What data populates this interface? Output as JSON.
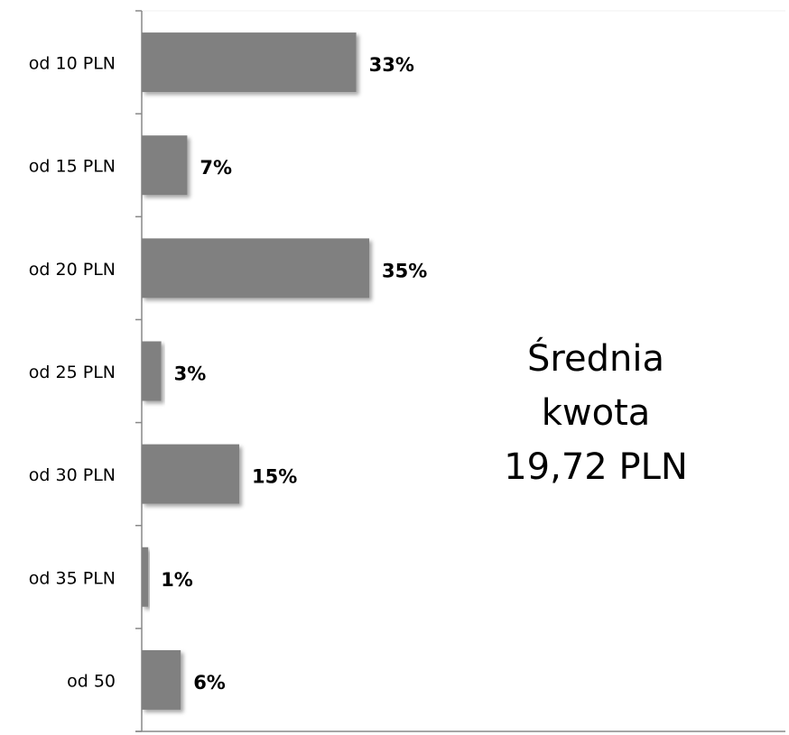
{
  "chart_data": {
    "type": "barh",
    "categories": [
      "od 10 PLN",
      "od 15 PLN",
      "od 20 PLN",
      "od 25 PLN",
      "od 30 PLN",
      "od 35 PLN",
      "od 50"
    ],
    "values": [
      33,
      7,
      35,
      3,
      15,
      1,
      6
    ],
    "value_labels": [
      "33%",
      "7%",
      "35%",
      "3%",
      "15%",
      "1%",
      "6%"
    ],
    "color": "#808080",
    "xlim": [
      0,
      100
    ],
    "annotation": [
      "Średnia",
      "kwota",
      "19,72 PLN"
    ]
  }
}
